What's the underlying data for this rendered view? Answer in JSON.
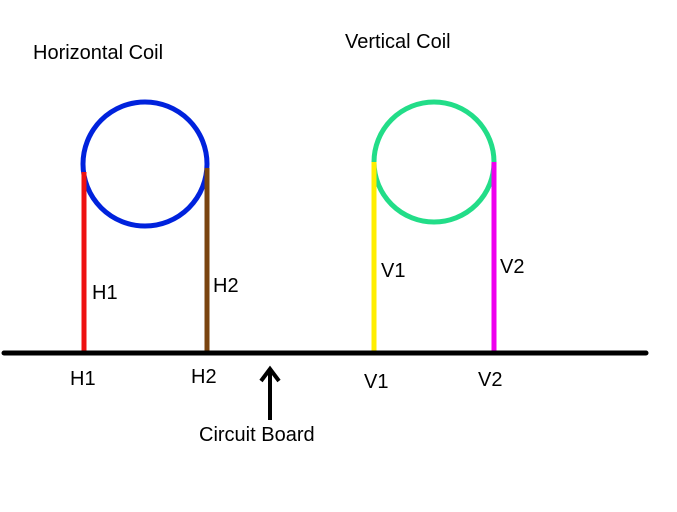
{
  "titles": {
    "horizontal": "Horizontal Coil",
    "vertical": "Vertical Coil"
  },
  "labels": {
    "h1_lead": "H1",
    "h2_lead": "H2",
    "v1_lead": "V1",
    "v2_lead": "V2",
    "h1_pad": "H1",
    "h2_pad": "H2",
    "v1_pad": "V1",
    "v2_pad": "V2",
    "circuit_board": "Circuit Board"
  },
  "colors": {
    "board": "#000000",
    "horizontal_coil": "#0022dd",
    "h1_wire": "#ee1111",
    "h2_wire": "#7a4410",
    "vertical_coil": "#22dd88",
    "v1_wire": "#ffee00",
    "v2_wire": "#ee00ee",
    "arrow": "#000000"
  }
}
